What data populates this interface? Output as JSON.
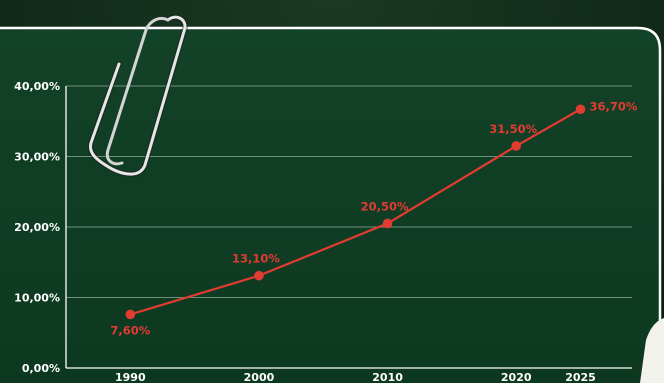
{
  "chart_data": {
    "type": "line",
    "title": "",
    "xlabel": "",
    "ylabel": "",
    "x": [
      "1990",
      "2000",
      "2010",
      "2020",
      "2025"
    ],
    "x_numeric": [
      1990,
      2000,
      2010,
      2020,
      2025
    ],
    "series": [
      {
        "values": [
          7.6,
          13.1,
          20.5,
          31.5,
          36.7
        ],
        "labels": [
          "7,60%",
          "13,10%",
          "20,50%",
          "31,50%",
          "36,70%"
        ],
        "color": "#e23b32"
      }
    ],
    "ylim": [
      0,
      40
    ],
    "yticks": [
      0,
      10,
      20,
      30,
      40
    ],
    "ytick_labels": [
      "0,00%",
      "10,00%",
      "20,00%",
      "30,00%",
      "40,00%"
    ],
    "grid": true,
    "legend": "none"
  },
  "theme": {
    "board_color": "#0f3d24",
    "background_color": "#0c2416",
    "grid_color": "#6f8f7c",
    "line_color": "#e23b32",
    "border_color": "#ffffff"
  },
  "decorations": {
    "paperclip_icon": "paperclip-icon",
    "person_icon": "person-shoulder-icon"
  }
}
